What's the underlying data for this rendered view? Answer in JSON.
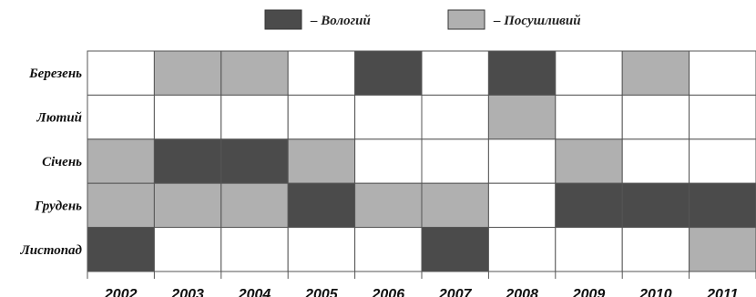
{
  "chart_data": {
    "type": "heatmap",
    "legend": {
      "placement": "top",
      "items": [
        {
          "key": "wet",
          "label": "– Вологий",
          "color": "#4b4b4b"
        },
        {
          "key": "dry",
          "label": "– Посушливий",
          "color": "#b0b0b0"
        }
      ]
    },
    "empty_color": "#ffffff",
    "rows": [
      "Березень",
      "Лютий",
      "Січень",
      "Грудень",
      "Листопад"
    ],
    "columns": [
      "2002",
      "2003",
      "2004",
      "2005",
      "2006",
      "2007",
      "2008",
      "2009",
      "2010",
      "2011"
    ],
    "values": [
      [
        "none",
        "dry",
        "dry",
        "none",
        "wet",
        "none",
        "wet",
        "none",
        "dry",
        "none"
      ],
      [
        "none",
        "none",
        "none",
        "none",
        "none",
        "none",
        "dry",
        "none",
        "none",
        "none"
      ],
      [
        "dry",
        "wet",
        "wet",
        "dry",
        "none",
        "none",
        "none",
        "dry",
        "none",
        "none"
      ],
      [
        "dry",
        "dry",
        "dry",
        "wet",
        "dry",
        "dry",
        "none",
        "wet",
        "wet",
        "wet"
      ],
      [
        "wet",
        "none",
        "none",
        "none",
        "none",
        "wet",
        "none",
        "none",
        "none",
        "dry"
      ]
    ]
  }
}
